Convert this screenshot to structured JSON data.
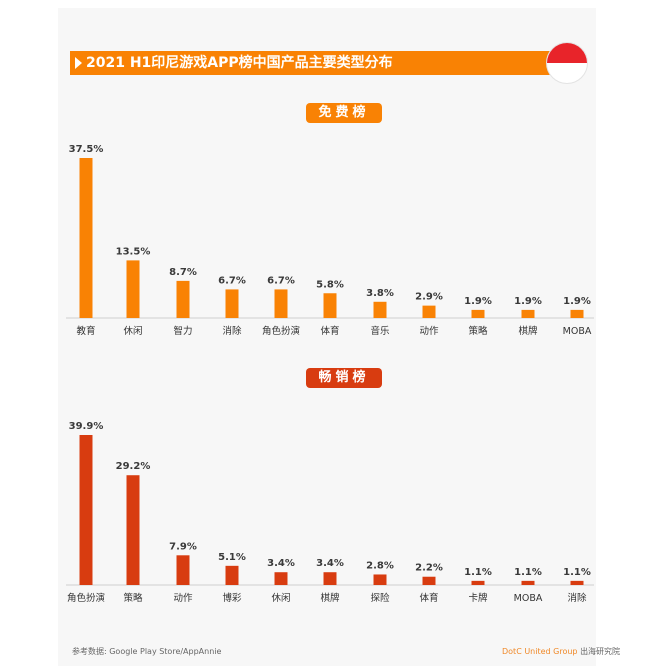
{
  "title": "2021 H1印尼游戏APP榜中国产品主要类型分布",
  "source": "参考数据: Google Play Store/AppAnnie",
  "org": {
    "brand": "DotC United Group",
    "suffix": "出海研究院"
  },
  "colors": {
    "free": "#f98204",
    "grossing": "#d83c10"
  },
  "chart_data": [
    {
      "type": "bar",
      "title": "免费榜",
      "categories": [
        "教育",
        "休闲",
        "智力",
        "消除",
        "角色扮演",
        "体育",
        "音乐",
        "动作",
        "策略",
        "棋牌",
        "MOBA"
      ],
      "values": [
        37.5,
        13.5,
        8.7,
        6.7,
        6.7,
        5.8,
        3.8,
        2.9,
        1.9,
        1.9,
        1.9
      ],
      "labels": [
        "37.5%",
        "13.5%",
        "8.7%",
        "6.7%",
        "6.7%",
        "5.8%",
        "3.8%",
        "2.9%",
        "1.9%",
        "1.9%",
        "1.9%"
      ]
    },
    {
      "type": "bar",
      "title": "畅销榜",
      "categories": [
        "角色扮演",
        "策略",
        "动作",
        "博彩",
        "休闲",
        "棋牌",
        "探险",
        "体育",
        "卡牌",
        "MOBA",
        "消除"
      ],
      "values": [
        39.9,
        29.2,
        7.9,
        5.1,
        3.4,
        3.4,
        2.8,
        2.2,
        1.1,
        1.1,
        1.1
      ],
      "labels": [
        "39.9%",
        "29.2%",
        "7.9%",
        "5.1%",
        "3.4%",
        "3.4%",
        "2.8%",
        "2.2%",
        "1.1%",
        "1.1%",
        "1.1%"
      ]
    }
  ]
}
